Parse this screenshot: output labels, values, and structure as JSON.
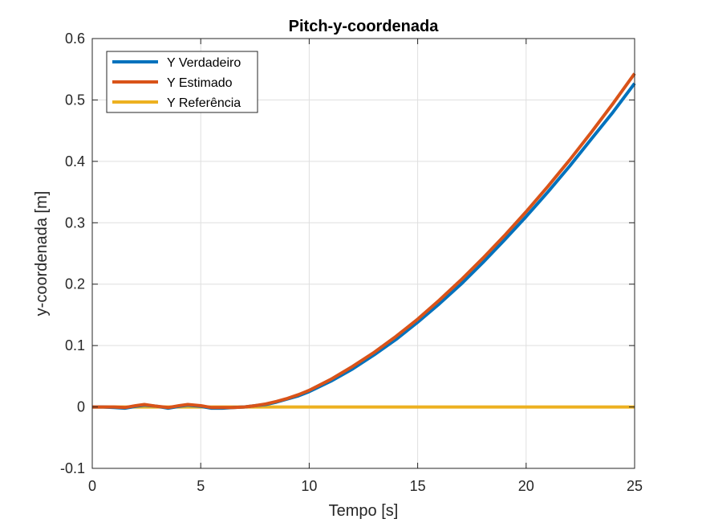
{
  "chart_data": {
    "type": "line",
    "title": "Pitch-y-coordenada",
    "xlabel": "Tempo [s]",
    "ylabel": "y-coordenada [m]",
    "xlim": [
      0,
      25
    ],
    "ylim": [
      -0.1,
      0.6
    ],
    "xticks": [
      0,
      5,
      10,
      15,
      20,
      25
    ],
    "yticks": [
      -0.1,
      0,
      0.1,
      0.2,
      0.3,
      0.4,
      0.5,
      0.6
    ],
    "xtick_labels": [
      "0",
      "5",
      "10",
      "15",
      "20",
      "25"
    ],
    "ytick_labels": [
      "-0.1",
      "0",
      "0.1",
      "0.2",
      "0.3",
      "0.4",
      "0.5",
      "0.6"
    ],
    "grid": true,
    "legend_position": "top-left",
    "series": [
      {
        "name": "Y Verdadeiro",
        "color": "#0072BD",
        "x": [
          0,
          0.5,
          1,
          1.5,
          2,
          2.4,
          3,
          3.5,
          4,
          4.4,
          5,
          5.5,
          6,
          6.5,
          7,
          7.5,
          8,
          8.5,
          9,
          9.5,
          10,
          11,
          12,
          13,
          14,
          15,
          16,
          17,
          18,
          19,
          20,
          21,
          22,
          23,
          24,
          25
        ],
        "y": [
          0,
          0,
          -0.001,
          -0.002,
          0.001,
          0.003,
          0.001,
          -0.002,
          0.001,
          0.003,
          0.001,
          -0.002,
          -0.002,
          -0.001,
          0,
          0.002,
          0.004,
          0.008,
          0.013,
          0.018,
          0.025,
          0.042,
          0.062,
          0.085,
          0.11,
          0.138,
          0.168,
          0.2,
          0.235,
          0.272,
          0.31,
          0.35,
          0.392,
          0.436,
          0.48,
          0.527
        ]
      },
      {
        "name": "Y Estimado",
        "color": "#D95319",
        "x": [
          0,
          0.5,
          1,
          1.5,
          2,
          2.4,
          3,
          3.5,
          4,
          4.4,
          5,
          5.5,
          6,
          6.5,
          7,
          7.5,
          8,
          8.5,
          9,
          9.5,
          10,
          11,
          12,
          13,
          14,
          15,
          16,
          17,
          18,
          19,
          20,
          21,
          22,
          23,
          24,
          25
        ],
        "y": [
          0,
          0,
          0,
          -0.001,
          0.002,
          0.004,
          0.001,
          -0.001,
          0.002,
          0.004,
          0.002,
          -0.001,
          -0.001,
          -0.001,
          0,
          0.002,
          0.005,
          0.009,
          0.014,
          0.02,
          0.027,
          0.045,
          0.066,
          0.089,
          0.115,
          0.143,
          0.174,
          0.207,
          0.242,
          0.279,
          0.318,
          0.359,
          0.402,
          0.447,
          0.494,
          0.543
        ]
      },
      {
        "name": "Y Referência",
        "color": "#EDB120",
        "x": [
          0,
          25
        ],
        "y": [
          0,
          0
        ]
      }
    ]
  }
}
